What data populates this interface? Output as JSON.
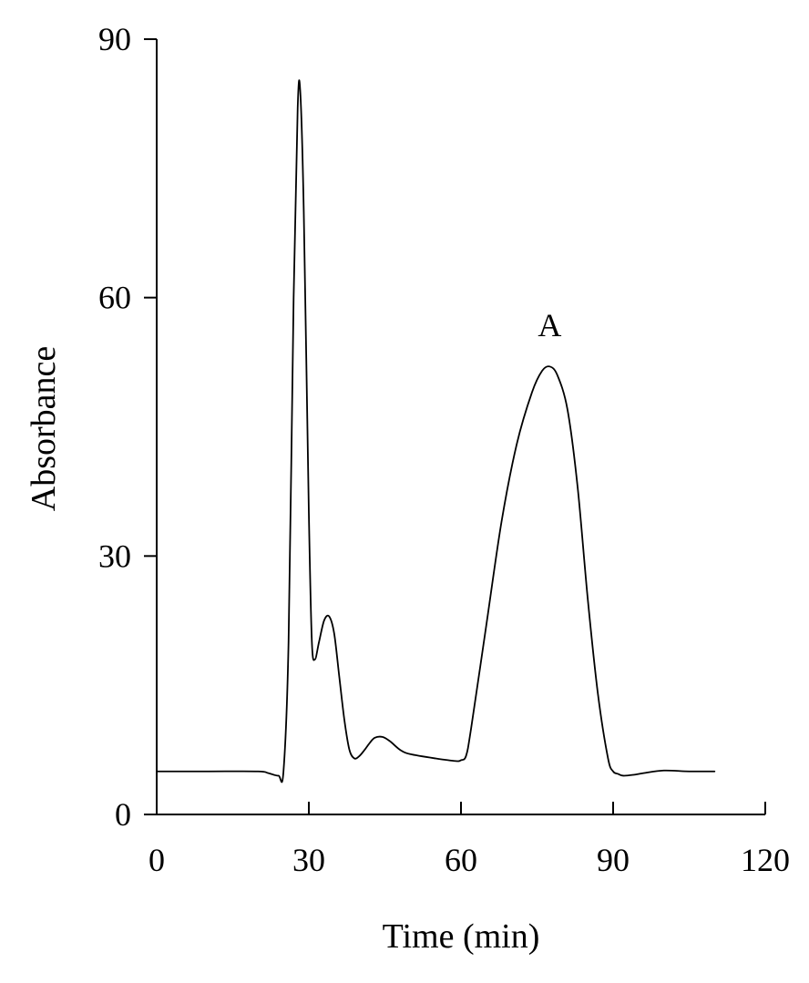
{
  "chart_data": {
    "type": "line",
    "title": "",
    "xlabel": "Time (min)",
    "ylabel": "Absorbance",
    "xlim": [
      0,
      120
    ],
    "ylim": [
      0,
      90
    ],
    "xticks": [
      0,
      30,
      60,
      90,
      120
    ],
    "yticks": [
      0,
      30,
      60,
      90
    ],
    "grid": false,
    "legend": "none",
    "series": [
      {
        "color": "#000000",
        "x": [
          0,
          10,
          20,
          22,
          24,
          25,
          26,
          27,
          27.8,
          28.3,
          29,
          30,
          30.6,
          31.2,
          32,
          33,
          34,
          35,
          36,
          37,
          38,
          39,
          40,
          41,
          42,
          43,
          44.5,
          46,
          48,
          50,
          55,
          59,
          60,
          61,
          62,
          65,
          68,
          71,
          74,
          76,
          77.5,
          79,
          81,
          83,
          85,
          87,
          89,
          90,
          91,
          92,
          94,
          96,
          100,
          105,
          110
        ],
        "y": [
          5,
          5,
          5,
          4.8,
          4.5,
          5,
          20,
          60,
          82,
          84,
          70,
          35,
          20,
          18,
          20,
          22.5,
          23,
          21,
          16,
          11,
          7.5,
          6.5,
          6.8,
          7.5,
          8.3,
          8.9,
          9,
          8.5,
          7.5,
          7,
          6.5,
          6.2,
          6.3,
          6.8,
          10,
          22,
          34,
          43,
          49,
          51.5,
          52,
          51,
          47,
          38,
          25,
          14,
          6.5,
          5,
          4.7,
          4.5,
          4.6,
          4.8,
          5.1,
          5,
          5
        ]
      }
    ],
    "annotations": [
      {
        "text": "A",
        "x": 77.5,
        "y": 55.5
      }
    ]
  }
}
